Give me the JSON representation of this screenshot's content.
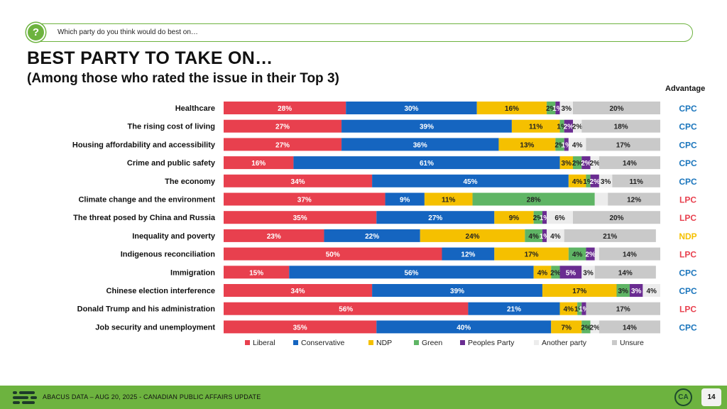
{
  "question": {
    "icon": "question-icon",
    "text": "Which party do you think would do best on…"
  },
  "title": "BEST PARTY TO TAKE ON…",
  "subtitle": "(Among those who rated the issue in their Top 3)",
  "advantage_header": "Advantage",
  "footer": {
    "text": "ABACUS DATA – AUG 20, 2025 - CANADIAN PUBLIC AFFAIRS UPDATE",
    "badge": "CA",
    "page": "14",
    "logo_icon": "abacus-logo-icon"
  },
  "colors": {
    "Liberal": "#e8404e",
    "Conservative": "#1565c0",
    "NDP": "#f5c000",
    "Green": "#5fb565",
    "Peoples Party": "#6a2c91",
    "Another party": "#ececec",
    "Unsure": "#c9c9c9",
    "LPC": "#e8404e",
    "CPC": "#1a75bc",
    "NDP_adv": "#f5c000",
    "accent": "#6db33f"
  },
  "chart_data": {
    "type": "bar",
    "orientation": "horizontal-stacked",
    "title": "BEST PARTY TO TAKE ON…",
    "subtitle": "(Among those who rated the issue in their Top 3)",
    "xlabel": "",
    "ylabel": "",
    "xlim": [
      0,
      100
    ],
    "categories": [
      "Healthcare",
      "The rising cost of living",
      "Housing affordability and accessibility",
      "Crime and public safety",
      "The economy",
      "Climate change and the environment",
      "The threat posed by China and Russia",
      "Inequality and poverty",
      "Indigenous reconciliation",
      "Immigration",
      "Chinese election interference",
      "Donald Trump and his administration",
      "Job security and unemployment"
    ],
    "series": [
      {
        "name": "Liberal",
        "values": [
          28,
          27,
          27,
          16,
          34,
          37,
          35,
          23,
          50,
          15,
          34,
          56,
          35
        ]
      },
      {
        "name": "Conservative",
        "values": [
          30,
          39,
          36,
          61,
          45,
          9,
          27,
          22,
          12,
          56,
          39,
          21,
          40
        ]
      },
      {
        "name": "NDP",
        "values": [
          16,
          11,
          13,
          3,
          4,
          11,
          9,
          24,
          17,
          4,
          17,
          4,
          7
        ]
      },
      {
        "name": "Green",
        "values": [
          2,
          1,
          2,
          2,
          1,
          28,
          2,
          4,
          4,
          2,
          3,
          1,
          2
        ]
      },
      {
        "name": "Peoples Party",
        "values": [
          1,
          2,
          1,
          2,
          2,
          0,
          1,
          1,
          2,
          5,
          3,
          1,
          0
        ]
      },
      {
        "name": "Another party",
        "values": [
          3,
          2,
          4,
          2,
          3,
          3,
          6,
          4,
          1,
          3,
          4,
          0,
          2
        ]
      },
      {
        "name": "Unsure",
        "values": [
          20,
          18,
          17,
          14,
          11,
          12,
          20,
          21,
          14,
          14,
          0,
          17,
          14
        ]
      }
    ],
    "data_labels": [
      [
        "28%",
        "30%",
        "16%",
        "2%",
        "1%",
        "3%",
        "20%"
      ],
      [
        "27%",
        "39%",
        "11%",
        "1%",
        "2%",
        "2%",
        "18%"
      ],
      [
        "27%",
        "36%",
        "13%",
        "2%",
        "1%",
        "4%",
        "17%"
      ],
      [
        "16%",
        "61%",
        "3%",
        "2%",
        "2%",
        "2%",
        "14%"
      ],
      [
        "34%",
        "45%",
        "4%",
        "1%",
        "2%",
        "3%",
        "11%"
      ],
      [
        "37%",
        "9%",
        "11%",
        "28%",
        "",
        "",
        "12%"
      ],
      [
        "35%",
        "27%",
        "9%",
        "2%",
        "1%",
        "6%",
        "20%"
      ],
      [
        "23%",
        "22%",
        "24%",
        "4%",
        "1%",
        "4%",
        "21%"
      ],
      [
        "50%",
        "12%",
        "17%",
        "4%",
        "2%",
        "",
        "14%"
      ],
      [
        "15%",
        "56%",
        "4%",
        "2%",
        "5%",
        "3%",
        "14%"
      ],
      [
        "34%",
        "39%",
        "17%",
        "3%",
        "3%",
        "4%",
        ""
      ],
      [
        "56%",
        "21%",
        "4%",
        "1%",
        "1%",
        "",
        "17%"
      ],
      [
        "35%",
        "40%",
        "7%",
        "2%",
        "",
        "2%",
        "14%"
      ]
    ],
    "advantage": [
      "CPC",
      "CPC",
      "CPC",
      "CPC",
      "CPC",
      "LPC",
      "LPC",
      "NDP",
      "LPC",
      "CPC",
      "CPC",
      "LPC",
      "CPC"
    ],
    "legend": [
      "Liberal",
      "Conservative",
      "NDP",
      "Green",
      "Peoples Party",
      "Another party",
      "Unsure"
    ],
    "legend_position": "bottom"
  }
}
